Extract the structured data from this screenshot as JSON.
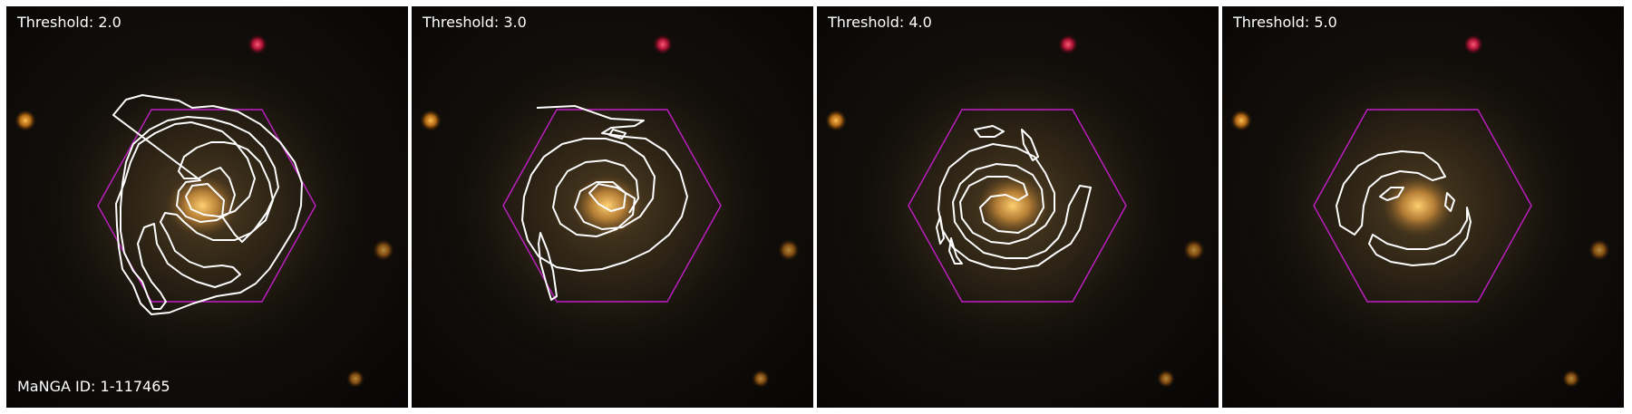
{
  "figure": {
    "caption": "MaNGA ID: 1-117465",
    "panels": [
      {
        "threshold_label": "Threshold: 2.0"
      },
      {
        "threshold_label": "Threshold: 3.0"
      },
      {
        "threshold_label": "Threshold: 4.0"
      },
      {
        "threshold_label": "Threshold: 5.0"
      }
    ],
    "colors": {
      "hexagon": "#c21fc6",
      "contour": "#ffffff",
      "bulge": "#f2b551",
      "red_star": "#e01846",
      "orange_star": "#e3901c"
    }
  }
}
